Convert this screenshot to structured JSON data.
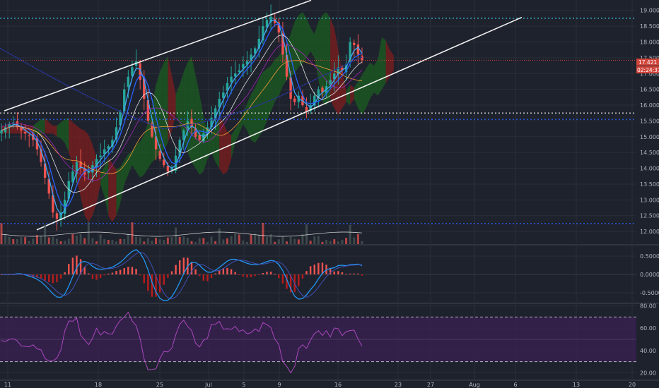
{
  "colors": {
    "background": "#1e222d",
    "grid": "#2a2e39",
    "bull": "#26a69a",
    "bear": "#ef5350",
    "price_line": "#d2453b",
    "trendline": "#f0f0f0",
    "dotted_level": "#3ec6e0",
    "dotted_level_2": "#ffffff",
    "ma_blue": "#2962ff",
    "ma_orange": "#f39c3a",
    "ma_white": "#e0e0e0",
    "cloud_green": "#1b5e20",
    "cloud_red": "#7f1d1d",
    "macd_line": "#2196f3",
    "signal_line": "#e91e63",
    "rsi_line": "#ab47bc",
    "rsi_band": "#3a1f55"
  },
  "price_badge": "17.421",
  "time_badge": "02:24:37",
  "chart_data": [
    {
      "type": "candlestick",
      "ylim": [
        11.6,
        19.15
      ],
      "y_ticks": [
        "19.000",
        "18.500",
        "18.000",
        "17.500",
        "17.000",
        "16.500",
        "16.000",
        "15.500",
        "15.000",
        "14.500",
        "14.000",
        "13.500",
        "13.000",
        "12.500",
        "12.000"
      ],
      "y_tick_values": [
        19.0,
        18.5,
        18.0,
        17.5,
        17.0,
        16.5,
        16.0,
        15.5,
        15.0,
        14.5,
        14.0,
        13.5,
        13.0,
        12.5,
        12.0
      ],
      "x_ticks": [
        "11",
        "18",
        "25",
        "Jul",
        "5",
        "9",
        "16",
        "23",
        "27",
        "Aug",
        "6",
        "13",
        "20"
      ],
      "last_price": 17.421,
      "levels": [
        18.75,
        15.75,
        15.55,
        12.25
      ],
      "trend_upper": {
        "x": [
          "Jun 4",
          "Jul 20"
        ],
        "y": [
          15.82,
          19.32
        ]
      },
      "trend_lower": {
        "x": [
          "Jun 11",
          "Aug 6"
        ],
        "y": [
          12.05,
          18.78
        ]
      },
      "close_series": [
        15.2,
        15.3,
        15.4,
        15.45,
        15.3,
        15.2,
        15.1,
        15.05,
        14.9,
        14.6,
        14.2,
        13.7,
        13.2,
        12.6,
        12.4,
        12.6,
        13.0,
        13.6,
        13.9,
        14.2,
        14.0,
        13.8,
        13.9,
        14.1,
        14.3,
        14.4,
        14.6,
        14.7,
        14.9,
        15.3,
        15.8,
        16.5,
        16.9,
        17.2,
        17.4,
        16.8,
        16.2,
        15.5,
        15.0,
        14.6,
        14.3,
        14.1,
        13.9,
        14.0,
        14.4,
        14.9,
        15.2,
        15.5,
        15.3,
        15.0,
        14.9,
        15.1,
        15.3,
        15.6,
        15.9,
        16.2,
        16.4,
        16.7,
        16.9,
        17.0,
        17.1,
        17.3,
        17.4,
        17.6,
        17.8,
        18.1,
        18.5,
        18.7,
        18.8,
        18.6,
        18.3,
        17.6,
        16.9,
        16.2,
        16.1,
        16.3,
        16.0,
        15.8,
        16.0,
        16.3,
        16.5,
        16.4,
        16.6,
        16.8,
        17.0,
        17.2,
        17.1,
        17.3,
        18.0,
        17.9,
        17.6,
        17.421
      ]
    },
    {
      "type": "macd",
      "ylim": [
        -0.75,
        0.75
      ],
      "y_ticks": [
        "0.5000",
        "0.0000",
        "-0.5000"
      ],
      "y_tick_values": [
        0.5,
        0.0,
        -0.5
      ]
    },
    {
      "type": "rsi",
      "ylim": [
        14,
        81
      ],
      "y_ticks": [
        "80.00",
        "60.00",
        "40.00",
        "20.00"
      ],
      "y_tick_values": [
        80,
        60,
        40,
        20
      ],
      "band": [
        30,
        70
      ]
    }
  ]
}
